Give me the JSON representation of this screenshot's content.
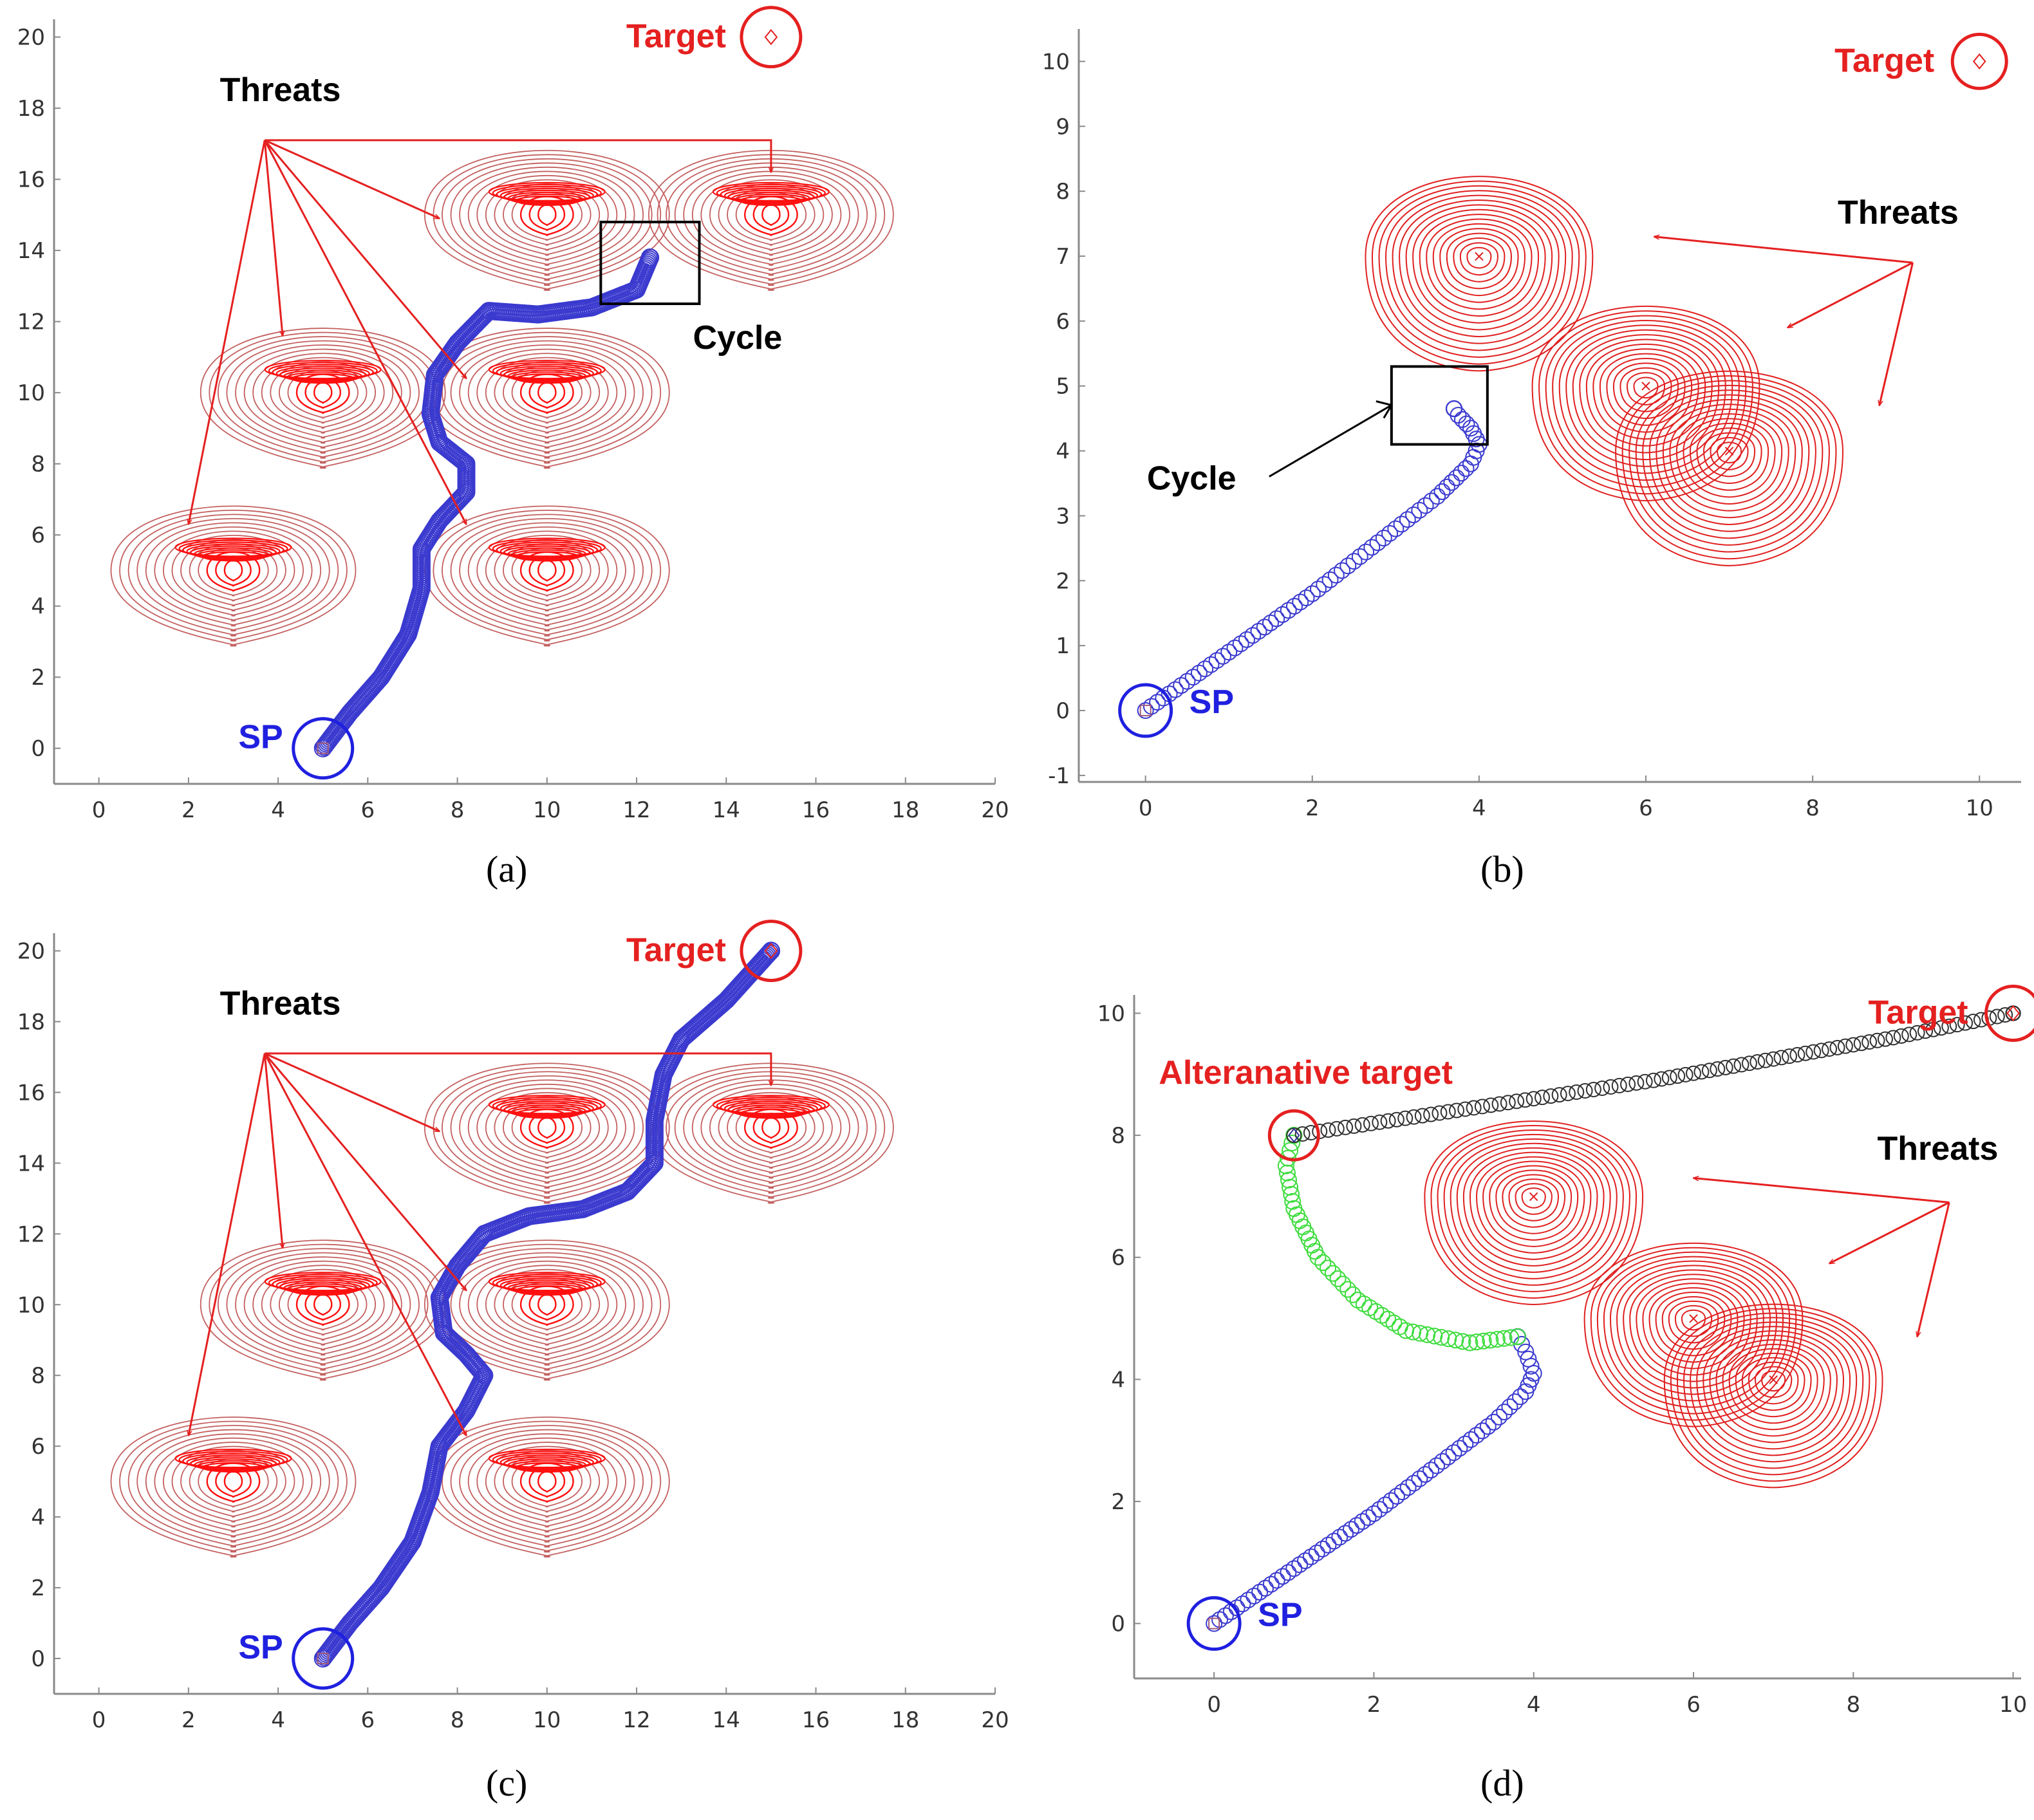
{
  "colors": {
    "threat_a": "#c46060",
    "threat_core_a": "#ff1010",
    "threat_b": "#e02020",
    "path_blue": "#3a3acf",
    "path_green": "#3ddc3d",
    "path_black": "#303030",
    "annot_red": "#e52020",
    "annot_blue": "#2020e0",
    "axis": "#8a8a8a"
  },
  "chart_data": [
    {
      "id": "a",
      "type": "scatter",
      "caption": "(a)",
      "xlim": [
        -1,
        20
      ],
      "ylim": [
        -1,
        20.5
      ],
      "xticks": [
        0,
        2,
        4,
        6,
        8,
        10,
        12,
        14,
        16,
        18,
        20
      ],
      "yticks": [
        0,
        2,
        4,
        6,
        8,
        10,
        12,
        14,
        16,
        18,
        20
      ],
      "threats": [
        {
          "x": 3,
          "y": 5
        },
        {
          "x": 10,
          "y": 5
        },
        {
          "x": 5,
          "y": 10
        },
        {
          "x": 10,
          "y": 10
        },
        {
          "x": 10,
          "y": 15
        },
        {
          "x": 15,
          "y": 15
        }
      ],
      "path_blue": [
        [
          5,
          0
        ],
        [
          5.6,
          1
        ],
        [
          6.3,
          2
        ],
        [
          6.9,
          3.2
        ],
        [
          7.2,
          4.5
        ],
        [
          7.2,
          5.6
        ],
        [
          7.6,
          6.4
        ],
        [
          8.2,
          7.2
        ],
        [
          8.2,
          8
        ],
        [
          7.6,
          8.6
        ],
        [
          7.4,
          9.4
        ],
        [
          7.5,
          10.5
        ],
        [
          8,
          11.4
        ],
        [
          8.7,
          12.3
        ],
        [
          9.8,
          12.2
        ],
        [
          11,
          12.4
        ],
        [
          12,
          12.9
        ],
        [
          12.3,
          13.8
        ]
      ],
      "path_green": [],
      "path_black": [],
      "start": {
        "x": 5,
        "y": 0,
        "label": "SP"
      },
      "target": {
        "x": 15,
        "y": 20,
        "label": "Target"
      },
      "alt_target": null,
      "cycle_box": {
        "x0": 11.2,
        "x1": 13.4,
        "y0": 12.5,
        "y1": 14.8,
        "label": "Cycle"
      },
      "threats_label": {
        "text": "Threats",
        "x": 2.7,
        "y": 18.2
      },
      "threat_arrows": {
        "origin": [
          3.7,
          17.1
        ],
        "targets": [
          [
            2,
            6.3
          ],
          [
            4.1,
            11.6
          ],
          [
            7.6,
            14.9
          ],
          [
            8.2,
            10.4
          ],
          [
            8.2,
            6.3
          ]
        ],
        "elbow": [
          15,
          17.1
        ],
        "elbow_target": [
          15,
          16.2
        ]
      }
    },
    {
      "id": "b",
      "type": "scatter",
      "caption": "(b)",
      "xlim": [
        -0.8,
        10.5
      ],
      "ylim": [
        -1.1,
        10.5
      ],
      "xticks": [
        0,
        2,
        4,
        6,
        8,
        10
      ],
      "yticks": [
        -1,
        0,
        1,
        2,
        3,
        4,
        5,
        6,
        7,
        8,
        9,
        10
      ],
      "threats": [
        {
          "x": 4,
          "y": 7
        },
        {
          "x": 6,
          "y": 5
        },
        {
          "x": 7,
          "y": 4
        }
      ],
      "path_blue": [
        [
          0,
          0
        ],
        [
          0.5,
          0.45
        ],
        [
          1,
          0.9
        ],
        [
          1.5,
          1.35
        ],
        [
          2,
          1.8
        ],
        [
          2.5,
          2.3
        ],
        [
          3,
          2.8
        ],
        [
          3.5,
          3.3
        ],
        [
          3.9,
          3.8
        ],
        [
          4,
          4.1
        ],
        [
          3.9,
          4.35
        ],
        [
          3.75,
          4.55
        ],
        [
          3.7,
          4.65
        ]
      ],
      "path_green": [],
      "path_black": [],
      "start": {
        "x": 0,
        "y": 0,
        "label": "SP"
      },
      "target": {
        "x": 10,
        "y": 10,
        "label": "Target"
      },
      "alt_target": null,
      "cycle_box": {
        "x0": 2.95,
        "x1": 4.1,
        "y0": 4.1,
        "y1": 5.3,
        "label": "Cycle"
      },
      "threats_label": {
        "text": "Threats",
        "x": 8.3,
        "y": 7.5
      },
      "threat_arrows": {
        "origin": [
          9.2,
          6.9
        ],
        "targets": [
          [
            6.1,
            7.3
          ],
          [
            7.7,
            5.9
          ],
          [
            8.8,
            4.7
          ]
        ],
        "elbow": null,
        "elbow_target": null
      }
    },
    {
      "id": "c",
      "type": "scatter",
      "caption": "(c)",
      "xlim": [
        -1,
        20
      ],
      "ylim": [
        -1,
        20.5
      ],
      "xticks": [
        0,
        2,
        4,
        6,
        8,
        10,
        12,
        14,
        16,
        18,
        20
      ],
      "yticks": [
        0,
        2,
        4,
        6,
        8,
        10,
        12,
        14,
        16,
        18,
        20
      ],
      "threats": [
        {
          "x": 3,
          "y": 5
        },
        {
          "x": 10,
          "y": 5
        },
        {
          "x": 5,
          "y": 10
        },
        {
          "x": 10,
          "y": 10
        },
        {
          "x": 10,
          "y": 15
        },
        {
          "x": 15,
          "y": 15
        }
      ],
      "path_blue": [
        [
          5,
          0
        ],
        [
          5.6,
          1
        ],
        [
          6.3,
          2
        ],
        [
          7,
          3.3
        ],
        [
          7.4,
          4.7
        ],
        [
          7.6,
          6
        ],
        [
          8.2,
          7
        ],
        [
          8.6,
          8
        ],
        [
          8.2,
          8.6
        ],
        [
          7.7,
          9.2
        ],
        [
          7.6,
          10.2
        ],
        [
          8,
          11.1
        ],
        [
          8.6,
          12
        ],
        [
          9.6,
          12.5
        ],
        [
          10.8,
          12.7
        ],
        [
          11.8,
          13.2
        ],
        [
          12.4,
          14
        ],
        [
          12.4,
          15.2
        ],
        [
          12.6,
          16.5
        ],
        [
          13,
          17.5
        ],
        [
          14,
          18.6
        ],
        [
          15,
          20
        ]
      ],
      "path_green": [],
      "path_black": [],
      "start": {
        "x": 5,
        "y": 0,
        "label": "SP"
      },
      "target": {
        "x": 15,
        "y": 20,
        "label": "Target"
      },
      "alt_target": null,
      "cycle_box": null,
      "threats_label": {
        "text": "Threats",
        "x": 2.7,
        "y": 18.2
      },
      "threat_arrows": {
        "origin": [
          3.7,
          17.1
        ],
        "targets": [
          [
            2,
            6.3
          ],
          [
            4.1,
            11.6
          ],
          [
            7.6,
            14.9
          ],
          [
            8.2,
            10.4
          ],
          [
            8.2,
            6.3
          ]
        ],
        "elbow": [
          15,
          17.1
        ],
        "elbow_target": [
          15,
          16.2
        ]
      }
    },
    {
      "id": "d",
      "type": "scatter",
      "caption": "(d)",
      "xlim": [
        -1,
        10.1
      ],
      "ylim": [
        -0.9,
        10.3
      ],
      "xticks": [
        0,
        2,
        4,
        6,
        8,
        10
      ],
      "yticks": [
        0,
        2,
        4,
        6,
        8,
        10
      ],
      "threats": [
        {
          "x": 4,
          "y": 7
        },
        {
          "x": 6,
          "y": 5
        },
        {
          "x": 7,
          "y": 4
        }
      ],
      "path_blue": [
        [
          0,
          0
        ],
        [
          0.5,
          0.45
        ],
        [
          1,
          0.9
        ],
        [
          1.5,
          1.35
        ],
        [
          2,
          1.8
        ],
        [
          2.5,
          2.3
        ],
        [
          3,
          2.8
        ],
        [
          3.5,
          3.3
        ],
        [
          3.9,
          3.8
        ],
        [
          4,
          4.1
        ],
        [
          3.9,
          4.45
        ],
        [
          3.8,
          4.7
        ]
      ],
      "path_green": [
        [
          3.8,
          4.7
        ],
        [
          3.2,
          4.6
        ],
        [
          2.4,
          4.8
        ],
        [
          1.8,
          5.3
        ],
        [
          1.3,
          6
        ],
        [
          1,
          6.8
        ],
        [
          0.9,
          7.5
        ],
        [
          1,
          8
        ]
      ],
      "path_black": [
        [
          1,
          8
        ],
        [
          2.5,
          8.3
        ],
        [
          4,
          8.6
        ],
        [
          5.5,
          8.9
        ],
        [
          7,
          9.25
        ],
        [
          8.5,
          9.6
        ],
        [
          10,
          10
        ]
      ],
      "start": {
        "x": 0,
        "y": 0,
        "label": "SP"
      },
      "target": {
        "x": 10,
        "y": 10,
        "label": "Target"
      },
      "alt_target": {
        "x": 1,
        "y": 8,
        "label": "Alteranative target"
      },
      "cycle_box": null,
      "threats_label": {
        "text": "Threats",
        "x": 8.3,
        "y": 7.6
      },
      "threat_arrows": {
        "origin": [
          9.2,
          6.9
        ],
        "targets": [
          [
            6,
            7.3
          ],
          [
            7.7,
            5.9
          ],
          [
            8.8,
            4.7
          ]
        ],
        "elbow": null,
        "elbow_target": null
      }
    }
  ]
}
